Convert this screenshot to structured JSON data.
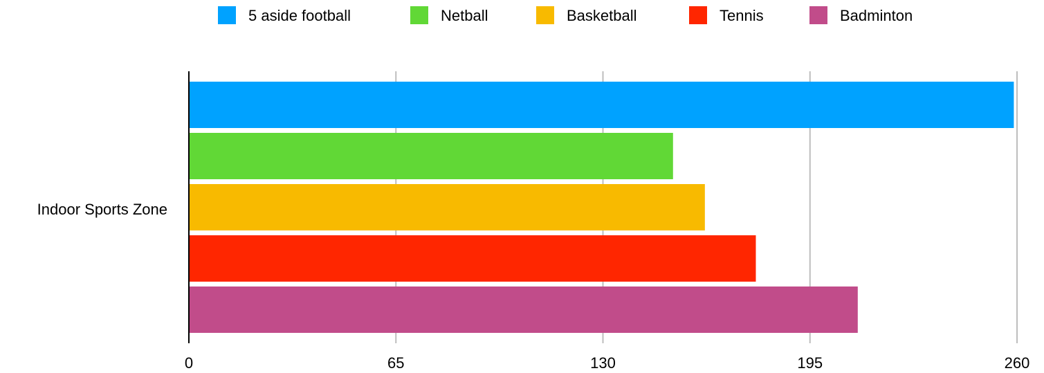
{
  "chart_data": {
    "type": "bar",
    "orientation": "horizontal",
    "categories": [
      "Indoor Sports Zone"
    ],
    "series": [
      {
        "name": "5 aside football",
        "color": "#00A2FF",
        "values": [
          259
        ]
      },
      {
        "name": "Netball",
        "color": "#61D836",
        "values": [
          152
        ]
      },
      {
        "name": "Basketball",
        "color": "#F8BA00",
        "values": [
          162
        ]
      },
      {
        "name": "Tennis",
        "color": "#FF2600",
        "values": [
          178
        ]
      },
      {
        "name": "Badminton",
        "color": "#C14C8A",
        "values": [
          210
        ]
      }
    ],
    "xlim": [
      0,
      260
    ],
    "xticks": [
      "0",
      "65",
      "130",
      "195",
      "260"
    ],
    "grid": true,
    "legend_position": "top"
  }
}
